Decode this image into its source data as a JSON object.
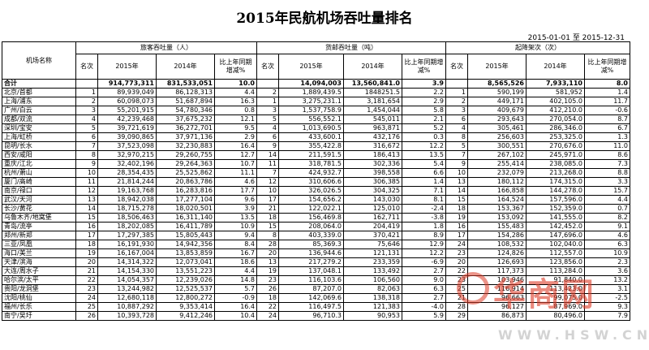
{
  "title": "2015年民航机场吞吐量排名",
  "period": "2015-01-01 至 2015-12-31",
  "headers": {
    "airport": "机场名称",
    "passenger_group": "旅客吞吐量（人）",
    "cargo_group": "货邮吞吐量（吨）",
    "movement_group": "起降架次（次）",
    "rank": "名次",
    "y2015": "2015年",
    "y2014": "2014年",
    "growth": "比上年同期增减%"
  },
  "total": {
    "name": "合计",
    "p2015": "914,773,311",
    "p2014": "831,533,051",
    "pg": "10.0",
    "c2015": "14,094,003",
    "c2014": "13,560,841.0",
    "cg": "3.9",
    "m2015": "8,565,526",
    "m2014": "7,933,110",
    "mg": "8.0"
  },
  "rows": [
    {
      "name": "北京/首都",
      "pr": "1",
      "p2015": "89,939,049",
      "p2014": "86,128,313",
      "pg": "4.4",
      "cr": "2",
      "c2015": "1,889,439.5",
      "c2014": "1848251.5",
      "cg": "2.2",
      "mr": "1",
      "m2015": "590,199",
      "m2014": "581,952",
      "mg": "1.4"
    },
    {
      "name": "上海/浦东",
      "pr": "2",
      "p2015": "60,098,073",
      "p2014": "51,687,894",
      "pg": "16.3",
      "cr": "1",
      "c2015": "3,275,231.1",
      "c2014": "3,181,654",
      "cg": "2.9",
      "mr": "2",
      "m2015": "449,171",
      "m2014": "402,105.0",
      "mg": "11.7"
    },
    {
      "name": "广州/白云",
      "pr": "3",
      "p2015": "55,201,915",
      "p2014": "54,780,346",
      "pg": "0.8",
      "cr": "3",
      "c2015": "1,537,758.9",
      "c2014": "1,454,044",
      "cg": "5.8",
      "mr": "3",
      "m2015": "409,679",
      "m2014": "412,210.0",
      "mg": "-0.6"
    },
    {
      "name": "成都/双流",
      "pr": "4",
      "p2015": "42,239,468",
      "p2014": "37,675,232",
      "pg": "12.1",
      "cr": "5",
      "c2015": "556,552.1",
      "c2014": "545,011",
      "cg": "2.1",
      "mr": "6",
      "m2015": "293,643",
      "m2014": "270,054.0",
      "mg": "8.7"
    },
    {
      "name": "深圳/宝安",
      "pr": "5",
      "p2015": "39,721,619",
      "p2014": "36,272,701",
      "pg": "9.5",
      "cr": "4",
      "c2015": "1,013,690.5",
      "c2014": "963,871",
      "cg": "5.2",
      "mr": "4",
      "m2015": "305,461",
      "m2014": "286,346.0",
      "mg": "6.7"
    },
    {
      "name": "上海/虹桥",
      "pr": "6",
      "p2015": "39,090,865",
      "p2014": "37,971,136",
      "pg": "2.9",
      "cr": "6",
      "c2015": "433,600.1",
      "c2014": "432,176",
      "cg": "0.3",
      "mr": "8",
      "m2015": "256,603",
      "m2014": "253,325.0",
      "mg": "1.3"
    },
    {
      "name": "昆明/长水",
      "pr": "7",
      "p2015": "37,523,098",
      "p2014": "32,230,883",
      "pg": "16.4",
      "cr": "9",
      "c2015": "355,422.8",
      "c2014": "316,672",
      "cg": "12.2",
      "mr": "5",
      "m2015": "300,551",
      "m2014": "270,676.0",
      "mg": "11.0"
    },
    {
      "name": "西安/咸阳",
      "pr": "8",
      "p2015": "32,970,215",
      "p2014": "29,260,755",
      "pg": "12.7",
      "cr": "14",
      "c2015": "211,591.5",
      "c2014": "186,413",
      "cg": "13.5",
      "mr": "7",
      "m2015": "267,102",
      "m2014": "245,971.0",
      "mg": "8.6"
    },
    {
      "name": "重庆/江北",
      "pr": "9",
      "p2015": "32,402,196",
      "p2014": "29,264,363",
      "pg": "10.7",
      "cr": "11",
      "c2015": "318,781.5",
      "c2014": "302,336",
      "cg": "5.4",
      "mr": "9",
      "m2015": "255,414",
      "m2014": "238,085.0",
      "mg": "7.3"
    },
    {
      "name": "杭州/萧山",
      "pr": "10",
      "p2015": "28,354,435",
      "p2014": "25,525,862",
      "pg": "11.1",
      "cr": "7",
      "c2015": "424,932.7",
      "c2014": "398,558",
      "cg": "6.6",
      "mr": "10",
      "m2015": "232,079",
      "m2014": "213,268.0",
      "mg": "8.8"
    },
    {
      "name": "厦门/高崎",
      "pr": "11",
      "p2015": "21,814,244",
      "p2014": "20,863,786",
      "pg": "4.6",
      "cr": "12",
      "c2015": "310,606.6",
      "c2014": "306,385",
      "cg": "1.4",
      "mr": "13",
      "m2015": "180,112",
      "m2014": "174,315.0",
      "mg": "3.3"
    },
    {
      "name": "南京/禄口",
      "pr": "12",
      "p2015": "19,163,768",
      "p2014": "16,283,816",
      "pg": "17.7",
      "cr": "10",
      "c2015": "326,026.5",
      "c2014": "304,325",
      "cg": "7.1",
      "mr": "14",
      "m2015": "166,858",
      "m2014": "144,278.0",
      "mg": "15.7"
    },
    {
      "name": "武汉/天河",
      "pr": "13",
      "p2015": "18,942,038",
      "p2014": "17,277,104",
      "pg": "9.6",
      "cr": "17",
      "c2015": "154,656.2",
      "c2014": "143,030",
      "cg": "8.1",
      "mr": "15",
      "m2015": "164,524",
      "m2014": "157,596.0",
      "mg": "4.4"
    },
    {
      "name": "长沙/黄花",
      "pr": "14",
      "p2015": "18,715,278",
      "p2014": "18,020,501",
      "pg": "3.9",
      "cr": "21",
      "c2015": "122,022.1",
      "c2014": "125,010",
      "cg": "-2.4",
      "mr": "18",
      "m2015": "153,367",
      "m2014": "152,359.0",
      "mg": "0.7"
    },
    {
      "name": "乌鲁木齐/地窝堡",
      "pr": "15",
      "p2015": "18,506,463",
      "p2014": "16,311,140",
      "pg": "13.5",
      "cr": "18",
      "c2015": "156,469.8",
      "c2014": "162,711",
      "cg": "-3.8",
      "mr": "19",
      "m2015": "153,092",
      "m2014": "141,555.0",
      "mg": "8.2"
    },
    {
      "name": "青岛/流亭",
      "pr": "16",
      "p2015": "18,202,085",
      "p2014": "16,411,789",
      "pg": "10.9",
      "cr": "15",
      "c2015": "208,064.0",
      "c2014": "204,419",
      "cg": "1.8",
      "mr": "16",
      "m2015": "155,483",
      "m2014": "142,452.0",
      "mg": "9.1"
    },
    {
      "name": "郑州/新郑",
      "pr": "17",
      "p2015": "17,297,385",
      "p2014": "15,805,443",
      "pg": "9.4",
      "cr": "8",
      "c2015": "403,339.0",
      "c2014": "370,421",
      "cg": "8.9",
      "mr": "17",
      "m2015": "154,286",
      "m2014": "147,696.0",
      "mg": "4.6"
    },
    {
      "name": "三亚/凤凰",
      "pr": "18",
      "p2015": "16,191,930",
      "p2014": "14,942,356",
      "pg": "8.4",
      "cr": "28",
      "c2015": "85,369.3",
      "c2014": "75,646",
      "cg": "12.9",
      "mr": "24",
      "m2015": "108,532",
      "m2014": "102,040.0",
      "mg": "6.3"
    },
    {
      "name": "海口/美兰",
      "pr": "19",
      "p2015": "16,167,004",
      "p2014": "13,853,859",
      "pg": "16.7",
      "cr": "20",
      "c2015": "136,944.6",
      "c2014": "121,131",
      "cg": "12.2",
      "mr": "23",
      "m2015": "124,826",
      "m2014": "112,557.0",
      "mg": "10.9"
    },
    {
      "name": "天津/滨海",
      "pr": "20",
      "p2015": "14,314,322",
      "p2014": "12,073,041",
      "pg": "18.6",
      "cr": "13",
      "c2015": "217,279.2",
      "c2014": "233,359",
      "cg": "-6.9",
      "mr": "20",
      "m2015": "126,693",
      "m2014": "123,856.0",
      "mg": "2.3"
    },
    {
      "name": "大连/周水子",
      "pr": "21",
      "p2015": "14,154,330",
      "p2014": "13,551,223",
      "pg": "4.4",
      "cr": "19",
      "c2015": "137,048.1",
      "c2014": "133,492",
      "cg": "2.7",
      "mr": "22",
      "m2015": "117,373",
      "m2014": "113,284.0",
      "mg": "3.6"
    },
    {
      "name": "哈尔滨/太平",
      "pr": "22",
      "p2015": "14,054,357",
      "p2014": "12,239,026",
      "pg": "14.8",
      "cr": "23",
      "c2015": "116,103.6",
      "c2014": "106,560",
      "cg": "9.0",
      "mr": "23",
      "m2015": "103,946",
      "m2014": "91,840.0",
      "mg": "13.2"
    },
    {
      "name": "贵阳/龙洞堡",
      "pr": "23",
      "p2015": "13,244,982",
      "p2014": "12,525,537",
      "pg": "5.7",
      "cr": "26",
      "c2015": "87,207.0",
      "c2014": "82,063",
      "cg": "6.3",
      "mr": "25",
      "m2015": "116,914",
      "m2014": "113,423.0",
      "mg": "3.1"
    },
    {
      "name": "沈阳/桃仙",
      "pr": "24",
      "p2015": "12,680,118",
      "p2014": "12,800,272",
      "pg": "-0.9",
      "cr": "18",
      "c2015": "142,069.6",
      "c2014": "138,318",
      "cg": "2.7",
      "mr": "21",
      "m2015": "96,663",
      "m2014": "99,075.0",
      "mg": "-2.5"
    },
    {
      "name": "福州/长乐",
      "pr": "25",
      "p2015": "10,887,292",
      "p2014": "9,353,414",
      "pg": "16.4",
      "cr": "22",
      "c2015": "116,497.5",
      "c2014": "121,383",
      "cg": "-4.0",
      "mr": "28",
      "m2015": "96,127",
      "m2014": "87,969.0",
      "mg": "9.3"
    },
    {
      "name": "南宁/吴圩",
      "pr": "26",
      "p2015": "10,393,728",
      "p2014": "9,412,246",
      "pg": "10.4",
      "cr": "24",
      "c2015": "96,710.3",
      "c2014": "90,953",
      "cg": "5.9",
      "mr": "29",
      "m2015": "86,873",
      "m2014": "80,496.0",
      "mg": "7.9"
    }
  ],
  "watermark": {
    "text": "华商网",
    "url": "WWW.HSW.CN"
  }
}
